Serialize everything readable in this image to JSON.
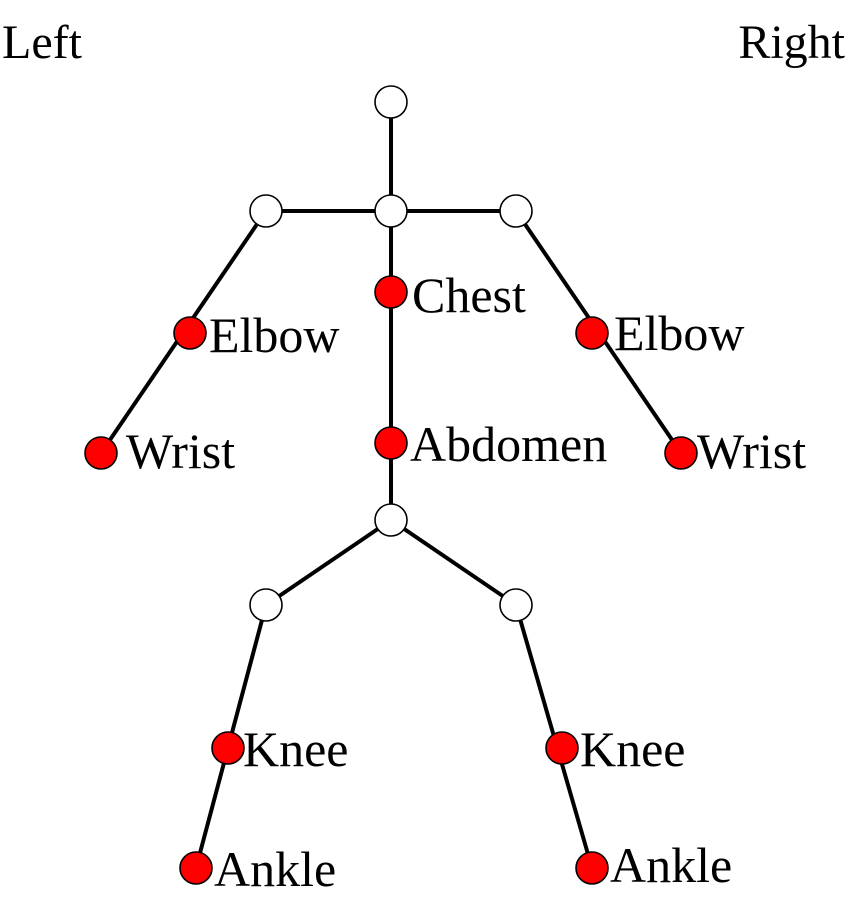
{
  "corner_labels": {
    "left": "Left",
    "right": "Right"
  },
  "colors": {
    "keypoint": "#ff0000",
    "joint": "#ffffff",
    "bone": "#000000"
  },
  "keypoints": {
    "chest": "Chest",
    "abdomen": "Abdomen",
    "left_elbow": "Elbow",
    "right_elbow": "Elbow",
    "left_wrist": "Wrist",
    "right_wrist": "Wrist",
    "left_knee": "Knee",
    "right_knee": "Knee",
    "left_ankle": "Ankle",
    "right_ankle": "Ankle"
  }
}
